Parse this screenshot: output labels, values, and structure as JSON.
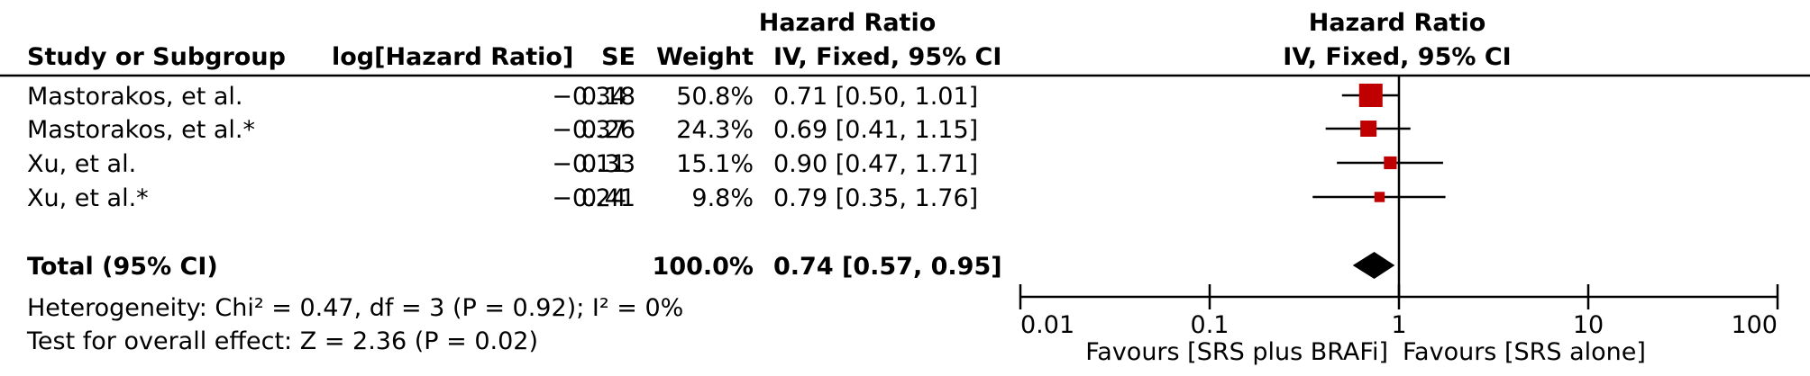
{
  "chart_data": {
    "type": "forest",
    "headers": {
      "study": "Study or Subgroup",
      "log_hr": "log[Hazard Ratio]",
      "se": "SE",
      "weight": "Weight",
      "ci_top": "Hazard Ratio",
      "ci_bottom": "IV, Fixed, 95% CI",
      "plot_top": "Hazard Ratio",
      "plot_bottom": "IV, Fixed, 95% CI"
    },
    "studies": [
      {
        "name": "Mastorakos, et al.",
        "log_hr": "−0.34",
        "se": "0.18",
        "weight": "50.8%",
        "ci_text": "0.71 [0.50, 1.01]",
        "hr": 0.71,
        "lower": 0.5,
        "upper": 1.01,
        "weight_value": 50.8
      },
      {
        "name": "Mastorakos, et al.*",
        "log_hr": "−0.37",
        "se": "0.26",
        "weight": "24.3%",
        "ci_text": "0.69 [0.41, 1.15]",
        "hr": 0.69,
        "lower": 0.41,
        "upper": 1.15,
        "weight_value": 24.3
      },
      {
        "name": "Xu, et al.",
        "log_hr": "−0.11",
        "se": "0.33",
        "weight": "15.1%",
        "ci_text": "0.90 [0.47, 1.71]",
        "hr": 0.9,
        "lower": 0.47,
        "upper": 1.71,
        "weight_value": 15.1
      },
      {
        "name": "Xu, et al.*",
        "log_hr": "−0.24",
        "se": "0.41",
        "weight": "9.8%",
        "ci_text": "0.79 [0.35, 1.76]",
        "hr": 0.79,
        "lower": 0.35,
        "upper": 1.76,
        "weight_value": 9.8
      }
    ],
    "total": {
      "label": "Total (95% CI)",
      "weight": "100.0%",
      "ci_text": "0.74 [0.57, 0.95]",
      "hr": 0.74,
      "lower": 0.57,
      "upper": 0.95
    },
    "heterogeneity": "Heterogeneity: Chi² = 0.47, df = 3 (P = 0.92); I² = 0%",
    "overall_effect": "Test for overall effect: Z = 2.36 (P = 0.02)",
    "x_scale": "log",
    "xlim": [
      0.01,
      100
    ],
    "x_ticks": [
      0.01,
      0.1,
      1,
      10,
      100
    ],
    "x_tick_labels": [
      "0.01",
      "0.1",
      "1",
      "10",
      "100"
    ],
    "null_line": 1,
    "favours_left": "Favours [SRS plus BRAFi]",
    "favours_right": "Favours [SRS alone]",
    "colors": {
      "study_marker": "#c00000",
      "total_marker": "#000000",
      "line": "#000000"
    }
  }
}
